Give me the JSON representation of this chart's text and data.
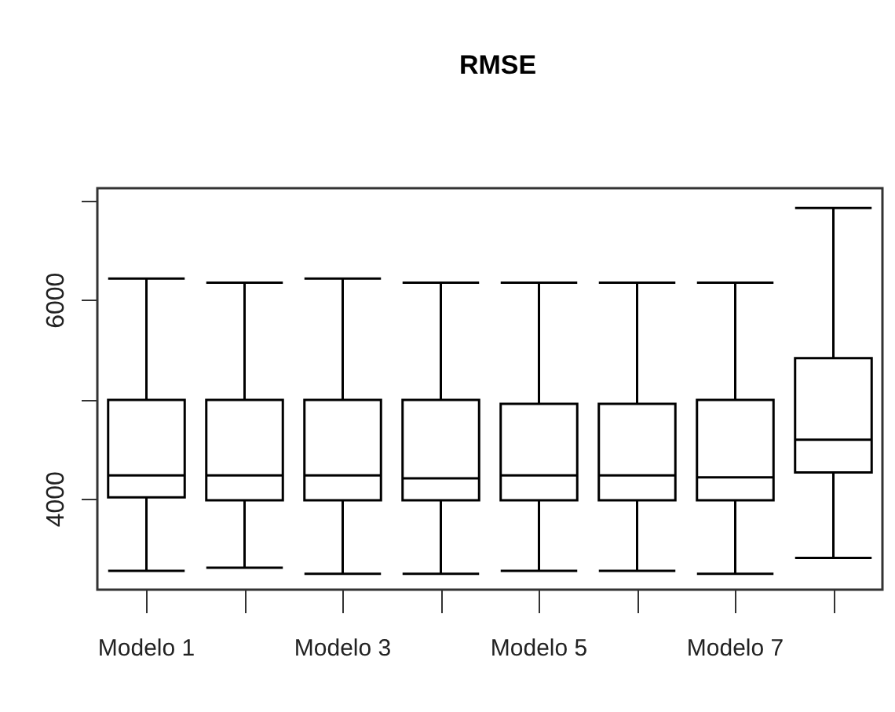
{
  "chart_data": {
    "type": "box",
    "title": "RMSE",
    "categories": [
      "Modelo 1",
      null,
      "Modelo 3",
      null,
      "Modelo 5",
      null,
      "Modelo 7",
      null
    ],
    "boxes": [
      {
        "low": 3280,
        "q1": 4020,
        "median": 4240,
        "q3": 5000,
        "high": 6220
      },
      {
        "low": 3310,
        "q1": 3990,
        "median": 4240,
        "q3": 5000,
        "high": 6180
      },
      {
        "low": 3250,
        "q1": 3990,
        "median": 4240,
        "q3": 5000,
        "high": 6220
      },
      {
        "low": 3250,
        "q1": 3990,
        "median": 4210,
        "q3": 5000,
        "high": 6180
      },
      {
        "low": 3280,
        "q1": 3990,
        "median": 4240,
        "q3": 4960,
        "high": 6180
      },
      {
        "low": 3280,
        "q1": 3990,
        "median": 4240,
        "q3": 4960,
        "high": 6180
      },
      {
        "low": 3250,
        "q1": 3990,
        "median": 4220,
        "q3": 5000,
        "high": 6180
      },
      {
        "low": 3410,
        "q1": 4270,
        "median": 4600,
        "q3": 5420,
        "high": 6930
      }
    ],
    "color": "#000000",
    "ylim": [
      3090,
      7130
    ],
    "yticks": [
      4000,
      {
        "value": 5000,
        "label": null
      },
      6000,
      {
        "value": 7000,
        "label": null
      }
    ],
    "grid": false
  }
}
